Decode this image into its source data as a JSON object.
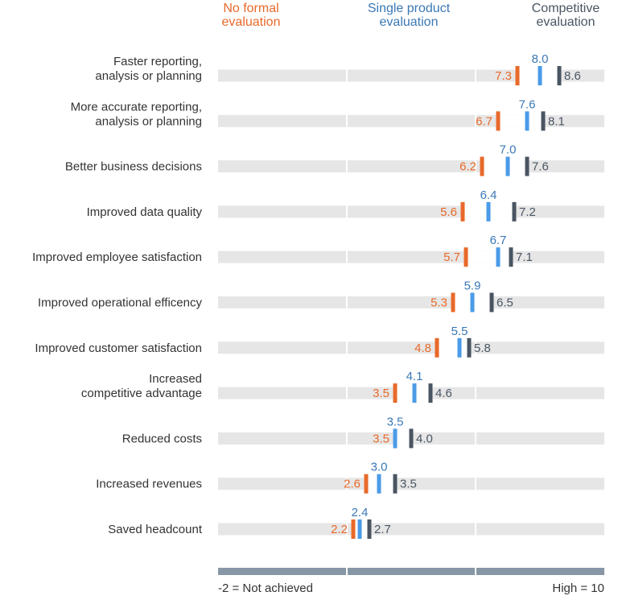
{
  "colors": {
    "no_formal": "#e8692a",
    "single": "#4a9be8",
    "competitive": "#4a5563",
    "track": "#e6e6e6",
    "axis_bar": "#8797a6",
    "label": "#333333",
    "single_text": "#3a78b5"
  },
  "chart_data": {
    "type": "dot-range",
    "title": "",
    "axis": {
      "min": -2,
      "max": 10,
      "min_label": "-2 = Not achieved",
      "max_label": "High = 10"
    },
    "legend": [
      {
        "key": "no_formal",
        "name_lines": [
          "No formal",
          "evaluation"
        ]
      },
      {
        "key": "single",
        "name_lines": [
          "Single product",
          "evaluation"
        ]
      },
      {
        "key": "competitive",
        "name_lines": [
          "Competitive",
          "evaluation"
        ]
      }
    ],
    "categories": [
      {
        "label_lines": [
          "Faster reporting,",
          "analysis or planning"
        ],
        "no_formal": 7.3,
        "single": 8.0,
        "competitive": 8.6
      },
      {
        "label_lines": [
          "More accurate reporting,",
          "analysis or planning"
        ],
        "no_formal": 6.7,
        "single": 7.6,
        "competitive": 8.1
      },
      {
        "label_lines": [
          "Better business decisions"
        ],
        "no_formal": 6.2,
        "single": 7.0,
        "competitive": 7.6
      },
      {
        "label_lines": [
          "Improved data quality"
        ],
        "no_formal": 5.6,
        "single": 6.4,
        "competitive": 7.2
      },
      {
        "label_lines": [
          "Improved employee satisfaction"
        ],
        "no_formal": 5.7,
        "single": 6.7,
        "competitive": 7.1
      },
      {
        "label_lines": [
          "Improved operational efficency"
        ],
        "no_formal": 5.3,
        "single": 5.9,
        "competitive": 6.5
      },
      {
        "label_lines": [
          "Improved customer satisfaction"
        ],
        "no_formal": 4.8,
        "single": 5.5,
        "competitive": 5.8
      },
      {
        "label_lines": [
          "Increased",
          "competitive advantage"
        ],
        "no_formal": 3.5,
        "single": 4.1,
        "competitive": 4.6
      },
      {
        "label_lines": [
          "Reduced costs"
        ],
        "no_formal": 3.5,
        "single": 3.5,
        "competitive": 4.0
      },
      {
        "label_lines": [
          "Increased revenues"
        ],
        "no_formal": 2.6,
        "single": 3.0,
        "competitive": 3.5
      },
      {
        "label_lines": [
          "Saved headcount"
        ],
        "no_formal": 2.2,
        "single": 2.4,
        "competitive": 2.7
      }
    ]
  }
}
